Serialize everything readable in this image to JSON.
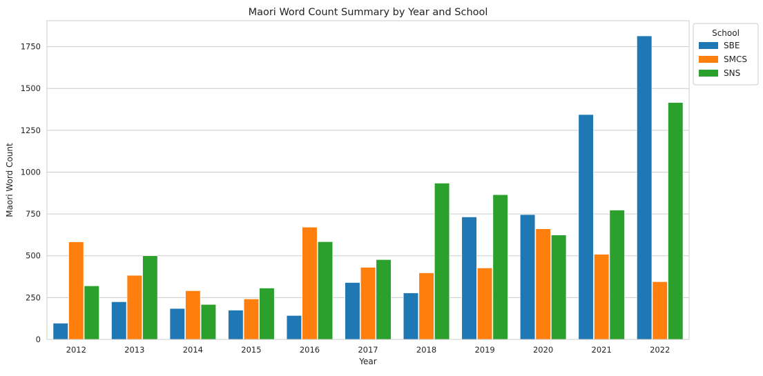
{
  "chart_data": {
    "type": "bar",
    "title": "Maori Word Count Summary by Year and School",
    "xlabel": "Year",
    "ylabel": "Maori Word Count",
    "categories": [
      "2012",
      "2013",
      "2014",
      "2015",
      "2016",
      "2017",
      "2018",
      "2019",
      "2020",
      "2021",
      "2022"
    ],
    "series": [
      {
        "name": "SBE",
        "color": "#1f77b4",
        "values": [
          97,
          225,
          185,
          175,
          143,
          340,
          278,
          732,
          746,
          1344,
          1814
        ]
      },
      {
        "name": "SMCS",
        "color": "#ff7f0e",
        "values": [
          583,
          383,
          291,
          242,
          671,
          431,
          398,
          427,
          661,
          509,
          345
        ]
      },
      {
        "name": "SNS",
        "color": "#2ca02c",
        "values": [
          320,
          500,
          209,
          307,
          584,
          477,
          934,
          865,
          624,
          773,
          1416
        ]
      }
    ],
    "yticks": [
      0,
      250,
      500,
      750,
      1000,
      1250,
      1500,
      1750
    ],
    "ylim": [
      0,
      1905
    ],
    "grid": "horizontal",
    "legend": {
      "title": "School",
      "placement": "outside-top-right"
    }
  }
}
